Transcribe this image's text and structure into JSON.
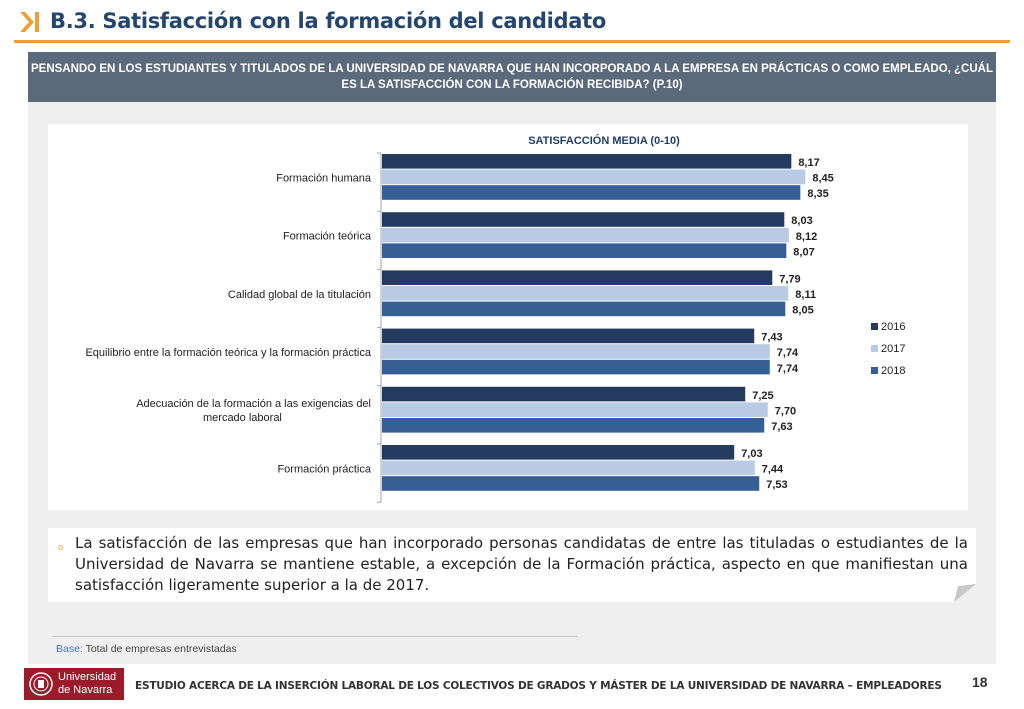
{
  "page": {
    "title": "B.3. Satisfacción con la formación del candidato",
    "question": "PENSANDO EN LOS ESTUDIANTES Y TITULADOS DE LA UNIVERSIDAD DE NAVARRA QUE HAN INCORPORADO A LA EMPRESA EN PRÁCTICAS O COMO EMPLEADO, ¿CUÁL ES LA SATISFACCIÓN CON LA FORMACIÓN RECIBIDA? (P.10)",
    "summary": "La satisfacción de las empresas que han incorporado personas candidatas de entre las tituladas o estudiantes de la Universidad de Navarra se mantiene estable, a excepción de la Formación práctica, aspecto en que manifiestan una satisfacción ligeramente  superior a la de 2017.",
    "base_label": "Base:",
    "base_text": "Total de empresas entrevistadas",
    "logo_line1": "Universidad",
    "logo_line2": "de Navarra",
    "footer": "ESTUDIO ACERCA DE LA INSERCIÓN LABORAL DE LOS COLECTIVOS DE GRADOS Y MÁSTER DE LA UNIVERSIDAD DE NAVARRA – EMPLEADORES",
    "page_number": "18",
    "colors": {
      "title": "#24466e",
      "accent": "#f0a030",
      "question_bg": "#5b6a7b",
      "logo_bg": "#9c1b2a"
    }
  },
  "chart_data": {
    "type": "bar",
    "orientation": "horizontal",
    "title": "SATISFACCIÓN MEDIA (0-10)",
    "categories": [
      "Formación humana",
      "Formación teórica",
      "Calidad global de la titulación",
      "Equilibrio entre la formación teórica y la formación práctica",
      "Adecuación de la formación a las exigencias del mercado laboral",
      "Formación práctica"
    ],
    "series": [
      {
        "name": "2016",
        "color": "#243a5e",
        "values": [
          8.17,
          8.03,
          7.79,
          7.43,
          7.25,
          7.03
        ],
        "labels": [
          "8,17",
          "8,03",
          "7,79",
          "7,43",
          "7,25",
          "7,03"
        ]
      },
      {
        "name": "2017",
        "color": "#b9cbe4",
        "values": [
          8.45,
          8.12,
          8.11,
          7.74,
          7.7,
          7.44
        ],
        "labels": [
          "8,45",
          "8,12",
          "8,11",
          "7,74",
          "7,70",
          "7,44"
        ]
      },
      {
        "name": "2018",
        "color": "#365f95",
        "values": [
          8.35,
          8.07,
          8.05,
          7.74,
          7.63,
          7.53
        ],
        "labels": [
          "8,35",
          "8,07",
          "8,05",
          "7,74",
          "7,63",
          "7,53"
        ]
      }
    ],
    "xlim": [
      0,
      10
    ],
    "grid": false,
    "legend": "right"
  }
}
